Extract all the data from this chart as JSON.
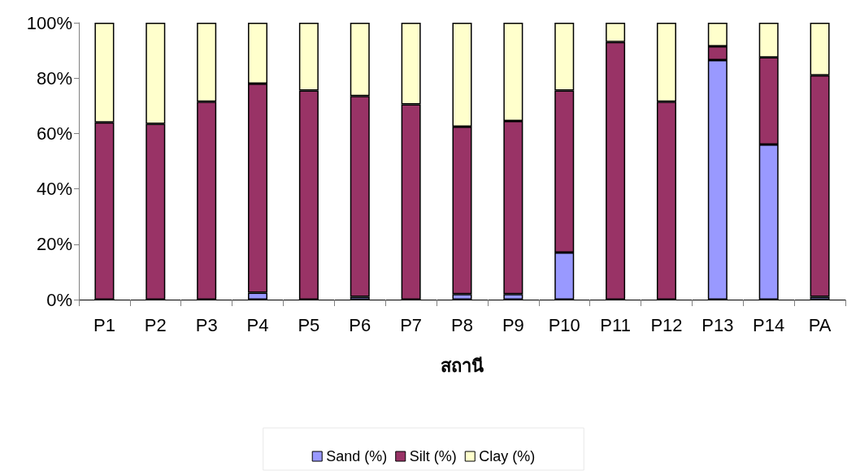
{
  "chart_data": {
    "type": "bar",
    "stacked": true,
    "xlabel": "สถานี",
    "categories": [
      "P1",
      "P2",
      "P3",
      "P4",
      "P5",
      "P6",
      "P7",
      "P8",
      "P9",
      "P10",
      "P11",
      "P12",
      "P13",
      "P14",
      "PA"
    ],
    "series": [
      {
        "name": "Sand (%)",
        "color": "#9999ff",
        "values": [
          0,
          null,
          null,
          2.5,
          0,
          1,
          null,
          2,
          2,
          17,
          null,
          0,
          86.5,
          56,
          1
        ]
      },
      {
        "name": "Silt (%)",
        "color": "#993366",
        "values": [
          64,
          63.5,
          71.5,
          75.5,
          75.5,
          72.5,
          70.5,
          60.5,
          62.5,
          58.5,
          93,
          71.5,
          5,
          31.5,
          80
        ]
      },
      {
        "name": "Clay (%)",
        "color": "#ffffcc",
        "values": [
          36,
          36.5,
          28.5,
          22,
          24.5,
          26.5,
          29.5,
          37.5,
          35.5,
          24.5,
          7,
          28.5,
          8.5,
          12.5,
          19
        ]
      }
    ],
    "ylim": [
      0,
      100
    ],
    "yticks": [
      {
        "value": 0,
        "label": "0%"
      },
      {
        "value": 20,
        "label": "20%"
      },
      {
        "value": 40,
        "label": "40%"
      },
      {
        "value": 60,
        "label": "60%"
      },
      {
        "value": 80,
        "label": "80%"
      },
      {
        "value": 100,
        "label": "100%"
      }
    ],
    "grid": false,
    "legend": "bottom"
  }
}
